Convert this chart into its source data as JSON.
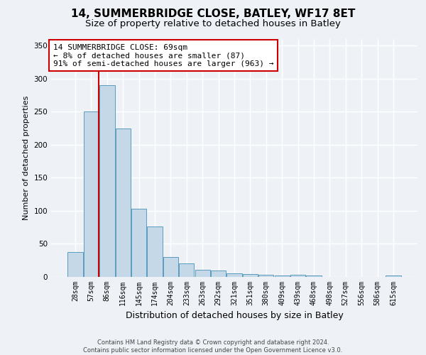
{
  "title": "14, SUMMERBRIDGE CLOSE, BATLEY, WF17 8ET",
  "subtitle": "Size of property relative to detached houses in Batley",
  "xlabel": "Distribution of detached houses by size in Batley",
  "ylabel": "Number of detached properties",
  "footer_line1": "Contains HM Land Registry data © Crown copyright and database right 2024.",
  "footer_line2": "Contains public sector information licensed under the Open Government Licence v3.0.",
  "bar_labels": [
    "28sqm",
    "57sqm",
    "86sqm",
    "116sqm",
    "145sqm",
    "174sqm",
    "204sqm",
    "233sqm",
    "263sqm",
    "292sqm",
    "321sqm",
    "351sqm",
    "380sqm",
    "409sqm",
    "439sqm",
    "468sqm",
    "498sqm",
    "527sqm",
    "556sqm",
    "586sqm",
    "615sqm"
  ],
  "bar_values": [
    38,
    250,
    290,
    225,
    103,
    76,
    30,
    20,
    11,
    10,
    5,
    4,
    3,
    2,
    3,
    2,
    0,
    0,
    0,
    0,
    2
  ],
  "bar_color": "#c5d8e8",
  "bar_edge_color": "#5a9bbf",
  "ylim": [
    0,
    360
  ],
  "yticks": [
    0,
    50,
    100,
    150,
    200,
    250,
    300,
    350
  ],
  "vline_color": "#cc0000",
  "vline_x_index": 1.48,
  "annotation_text_line1": "14 SUMMERBRIDGE CLOSE: 69sqm",
  "annotation_text_line2": "← 8% of detached houses are smaller (87)",
  "annotation_text_line3": "91% of semi-detached houses are larger (963) →",
  "annotation_box_color": "#cc0000",
  "annotation_facecolor": "white",
  "bg_color": "#eef2f7",
  "grid_color": "white",
  "title_fontsize": 11,
  "subtitle_fontsize": 9.5,
  "annotation_fontsize": 8,
  "ylabel_fontsize": 8,
  "xlabel_fontsize": 9,
  "tick_fontsize": 7,
  "footer_fontsize": 6
}
